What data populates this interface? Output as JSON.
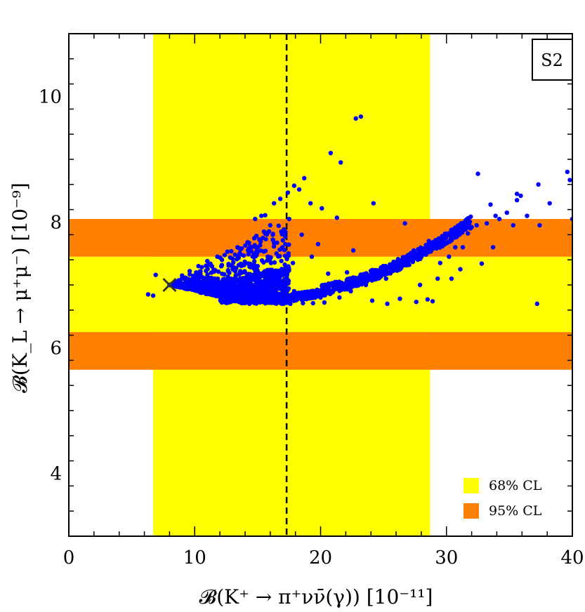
{
  "chart_data": {
    "type": "scatter",
    "title": "",
    "tag": "S2",
    "xlabel": "𝓑(K⁺ → π⁺νν̄(γ))  [10⁻¹¹]",
    "ylabel": "𝓑(K_L → μ⁺μ⁻)  [10⁻⁹]",
    "xlim": [
      0,
      40
    ],
    "ylim": [
      3,
      11
    ],
    "x_ticks": [
      0,
      10,
      20,
      30,
      40
    ],
    "y_ticks": [
      4,
      6,
      8,
      10
    ],
    "colors": {
      "cl68": "#ffff00",
      "cl95": "#ff8000",
      "points": "#0000ff",
      "sm_marker": "#333333",
      "sm_line": "#000000"
    },
    "bands": {
      "x_68": [
        6.7,
        28.7
      ],
      "y_68": [
        6.25,
        7.45
      ],
      "y_95_lower": [
        5.65,
        6.25
      ],
      "y_95_upper": [
        7.45,
        8.05
      ]
    },
    "sm_central_x": 17.3,
    "sm_point": {
      "x": 8.0,
      "y": 7.0
    },
    "legend": [
      {
        "label": "68% CL",
        "color": "#ffff00"
      },
      {
        "label": "95% CL",
        "color": "#ff8000"
      }
    ],
    "scatter_points": [
      [
        6.3,
        6.85
      ],
      [
        6.7,
        6.83
      ],
      [
        6.9,
        7.16
      ],
      [
        8.0,
        7.0
      ],
      [
        14.8,
        8.05
      ],
      [
        15.3,
        8.1
      ],
      [
        15.6,
        8.11
      ],
      [
        16.3,
        8.3
      ],
      [
        16.8,
        8.37
      ],
      [
        17.5,
        8.05
      ],
      [
        17.4,
        8.47
      ],
      [
        17.9,
        8.58
      ],
      [
        18.3,
        8.52
      ],
      [
        18.7,
        8.7
      ],
      [
        19.2,
        8.3
      ],
      [
        20.1,
        8.22
      ],
      [
        20.8,
        9.1
      ],
      [
        21.6,
        8.95
      ],
      [
        22.8,
        9.65
      ],
      [
        23.2,
        9.68
      ],
      [
        21.3,
        8.07
      ],
      [
        17.2,
        7.65
      ],
      [
        18.5,
        7.8
      ],
      [
        19.8,
        7.65
      ],
      [
        16.2,
        7.72
      ],
      [
        15.8,
        7.45
      ],
      [
        16.5,
        7.5
      ],
      [
        17.8,
        7.35
      ],
      [
        19.3,
        7.45
      ],
      [
        20.6,
        7.18
      ],
      [
        22.1,
        7.2
      ],
      [
        22.6,
        7.55
      ],
      [
        24.2,
        8.3
      ],
      [
        26.7,
        7.98
      ],
      [
        24.1,
        6.75
      ],
      [
        25.3,
        6.7
      ],
      [
        26.3,
        6.78
      ],
      [
        27.6,
        6.73
      ],
      [
        28.5,
        6.77
      ],
      [
        28.9,
        6.74
      ],
      [
        29.5,
        7.35
      ],
      [
        30.4,
        7.1
      ],
      [
        31.1,
        7.25
      ],
      [
        31.9,
        7.9
      ],
      [
        32.4,
        7.95
      ],
      [
        32.5,
        8.77
      ],
      [
        32.8,
        7.34
      ],
      [
        33.2,
        7.98
      ],
      [
        33.5,
        8.28
      ],
      [
        33.9,
        8.1
      ],
      [
        34.8,
        8.15
      ],
      [
        35.3,
        7.95
      ],
      [
        35.6,
        8.45
      ],
      [
        35.6,
        8.35
      ],
      [
        35.9,
        8.42
      ],
      [
        37.3,
        8.6
      ],
      [
        37.4,
        7.95
      ],
      [
        37.2,
        6.7
      ],
      [
        39.6,
        8.8
      ],
      [
        39.8,
        8.67
      ],
      [
        40.0,
        8.05
      ],
      [
        31.7,
        7.82
      ],
      [
        30.7,
        7.6
      ],
      [
        29.9,
        7.75
      ],
      [
        28.6,
        7.7
      ],
      [
        27.4,
        7.55
      ],
      [
        30.2,
        7.45
      ],
      [
        31.3,
        7.6
      ],
      [
        34.2,
        8.05
      ],
      [
        36.4,
        8.1
      ],
      [
        38.2,
        8.3
      ],
      [
        33.7,
        7.6
      ],
      [
        29.3,
        7.1
      ],
      [
        27.9,
        7.0
      ],
      [
        26.0,
        7.3
      ],
      [
        25.2,
        7.1
      ],
      [
        23.6,
        7.0
      ],
      [
        22.4,
        6.9
      ],
      [
        21.5,
        6.8
      ],
      [
        20.3,
        6.72
      ],
      [
        19.4,
        6.71
      ],
      [
        18.6,
        6.71
      ],
      [
        17.6,
        6.7
      ],
      [
        16.5,
        6.71
      ],
      [
        15.6,
        6.72
      ],
      [
        14.6,
        6.73
      ],
      [
        13.7,
        6.76
      ],
      [
        12.7,
        6.8
      ],
      [
        11.8,
        6.85
      ],
      [
        10.9,
        6.9
      ],
      [
        10.0,
        6.94
      ],
      [
        9.2,
        6.97
      ],
      [
        8.6,
        7.05
      ],
      [
        9.0,
        7.15
      ],
      [
        9.6,
        7.22
      ],
      [
        10.3,
        7.3
      ],
      [
        11.0,
        7.38
      ],
      [
        11.8,
        7.45
      ],
      [
        12.6,
        7.53
      ],
      [
        13.4,
        7.6
      ],
      [
        14.2,
        7.68
      ],
      [
        14.9,
        7.78
      ],
      [
        15.5,
        7.85
      ],
      [
        16.0,
        7.95
      ],
      [
        13.2,
        7.1
      ],
      [
        14.0,
        7.2
      ],
      [
        15.0,
        7.3
      ],
      [
        15.8,
        7.1
      ],
      [
        16.8,
        7.0
      ],
      [
        17.9,
        6.9
      ],
      [
        19.0,
        6.85
      ],
      [
        20.0,
        6.8
      ],
      [
        21.0,
        6.9
      ],
      [
        22.0,
        6.95
      ],
      [
        23.0,
        7.05
      ],
      [
        24.0,
        7.15
      ],
      [
        25.0,
        7.25
      ],
      [
        26.0,
        7.35
      ],
      [
        27.0,
        7.45
      ],
      [
        28.0,
        7.55
      ],
      [
        29.0,
        7.65
      ],
      [
        30.0,
        7.78
      ],
      [
        31.0,
        7.88
      ],
      [
        32.0,
        7.92
      ]
    ]
  }
}
